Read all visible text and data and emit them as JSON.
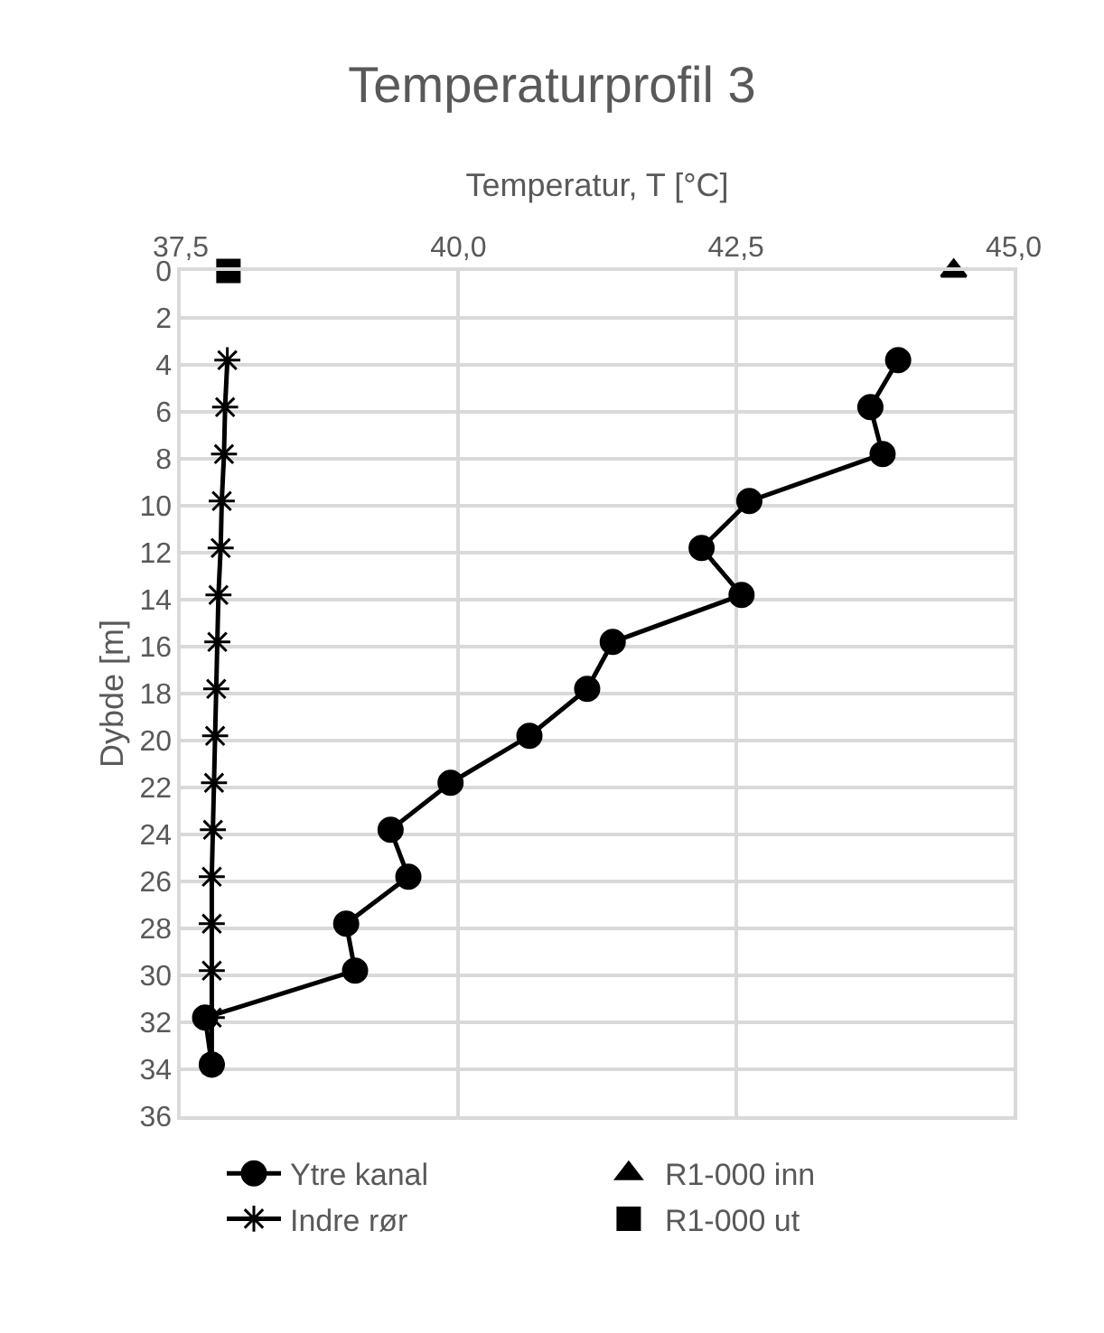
{
  "chart_data": {
    "type": "line",
    "title": "Temperaturprofil 3",
    "xlabel": "Temperatur, T [°C]",
    "ylabel": "Dybde [m]",
    "xlim": [
      37.5,
      45.0
    ],
    "xticks": [
      {
        "value": 37.5,
        "label": "37,5"
      },
      {
        "value": 40.0,
        "label": "40,0"
      },
      {
        "value": 42.5,
        "label": "42,5"
      },
      {
        "value": 45.0,
        "label": "45,0"
      }
    ],
    "ylim": [
      36,
      0
    ],
    "yticks": [
      0,
      2,
      4,
      6,
      8,
      10,
      12,
      14,
      16,
      18,
      20,
      22,
      24,
      26,
      28,
      30,
      32,
      34,
      36
    ],
    "grid": true,
    "legend": "bottom",
    "series": [
      {
        "name": "Ytre kanal",
        "color": "#000000",
        "marker": "circle",
        "line_style": "solid",
        "x": [
          43.96,
          43.71,
          43.82,
          42.62,
          42.19,
          42.55,
          41.39,
          41.16,
          40.64,
          39.93,
          39.39,
          39.55,
          38.99,
          39.07,
          37.72,
          37.78
        ],
        "values": [
          3.8,
          5.8,
          7.8,
          9.8,
          11.8,
          13.8,
          15.8,
          17.8,
          19.8,
          21.8,
          23.8,
          25.8,
          27.8,
          29.8,
          31.8,
          33.8
        ]
      },
      {
        "name": "R1-000 inn",
        "type": "scatter",
        "color": "#000000",
        "marker": "triangle",
        "x": [
          44.46
        ],
        "values": [
          0
        ]
      },
      {
        "name": "Indre rør",
        "color": "#000000",
        "marker": "cross",
        "line_style": "solid",
        "x": [
          37.92,
          37.9,
          37.89,
          37.87,
          37.86,
          37.84,
          37.83,
          37.82,
          37.81,
          37.8,
          37.79,
          37.78,
          37.78,
          37.78,
          37.78,
          37.78
        ],
        "values": [
          3.8,
          5.8,
          7.8,
          9.8,
          11.8,
          13.8,
          15.8,
          17.8,
          19.8,
          21.8,
          23.8,
          25.8,
          27.8,
          29.8,
          31.8,
          33.8
        ]
      },
      {
        "name": "R1-000 ut",
        "type": "scatter",
        "color": "#000000",
        "marker": "square",
        "x": [
          37.93
        ],
        "values": [
          0
        ]
      }
    ]
  }
}
